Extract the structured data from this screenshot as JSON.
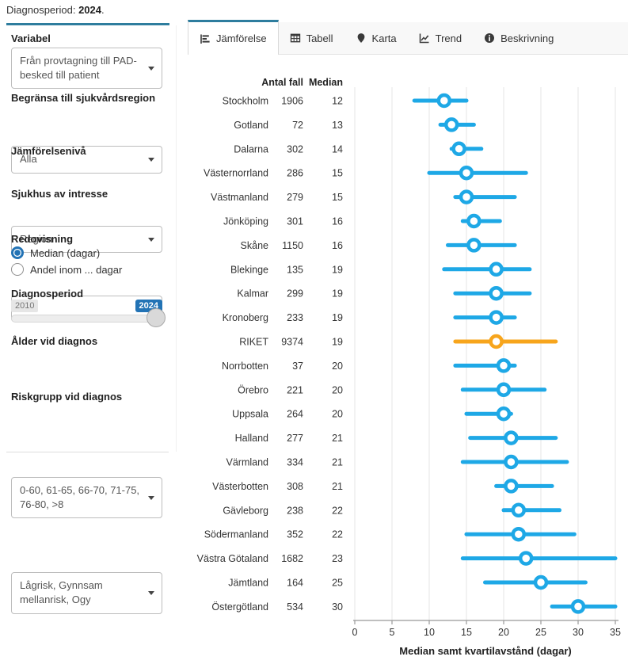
{
  "page": {
    "summary_prefix": "Diagnosperiod: ",
    "summary_value": "2024",
    "summary_suffix": "."
  },
  "sidebar": {
    "variabel_label": "Variabel",
    "variabel_value": "Från provtagning till PAD-besked till patient",
    "region_label": "Begränsa till sjukvårdsregion",
    "region_value": "Alla",
    "niva_label": "Jämförelsenivå",
    "niva_value": "Region",
    "sjukhus_label": "Sjukhus av intresse",
    "sjukhus_value": "",
    "redovisning_label": "Redovisning",
    "redovisning_options": [
      {
        "label": "Median (dagar)",
        "selected": true
      },
      {
        "label": "Andel inom ... dagar",
        "selected": false
      }
    ],
    "period_label": "Diagnosperiod",
    "period_min": "2010",
    "period_max": "2024",
    "alder_label": "Ålder vid diagnos",
    "alder_value": "0-60, 61-65, 66-70, 71-75, 76-80, >8",
    "riskgrupp_label": "Riskgrupp vid diagnos",
    "riskgrupp_value": "Lågrisk, Gynnsam mellanrisk, Ogy"
  },
  "tabs": [
    {
      "label": "Jämförelse",
      "active": true
    },
    {
      "label": "Tabell",
      "active": false
    },
    {
      "label": "Karta",
      "active": false
    },
    {
      "label": "Trend",
      "active": false
    },
    {
      "label": "Beskrivning",
      "active": false
    }
  ],
  "chart_data": {
    "type": "dot-interval",
    "columns": {
      "cases": "Antal fall",
      "median": "Median"
    },
    "xlabel": "Median samt kvartilavstånd (dagar)",
    "xlim": [
      0,
      35
    ],
    "xticks": [
      0,
      5,
      10,
      15,
      20,
      25,
      30,
      35
    ],
    "colors": {
      "marker": "#1ea8e6",
      "highlight": "#f7a51c"
    },
    "rows": [
      {
        "label": "Stockholm",
        "antal_fall": 1906,
        "median": 12,
        "q1": 8,
        "q3": 15,
        "highlight": false
      },
      {
        "label": "Gotland",
        "antal_fall": 72,
        "median": 13,
        "q1": 11.5,
        "q3": 16,
        "highlight": false
      },
      {
        "label": "Dalarna",
        "antal_fall": 302,
        "median": 14,
        "q1": 13,
        "q3": 17,
        "highlight": false
      },
      {
        "label": "Västernorrland",
        "antal_fall": 286,
        "median": 15,
        "q1": 10,
        "q3": 23,
        "highlight": false
      },
      {
        "label": "Västmanland",
        "antal_fall": 279,
        "median": 15,
        "q1": 13.5,
        "q3": 21.5,
        "highlight": false
      },
      {
        "label": "Jönköping",
        "antal_fall": 301,
        "median": 16,
        "q1": 14.5,
        "q3": 19.5,
        "highlight": false
      },
      {
        "label": "Skåne",
        "antal_fall": 1150,
        "median": 16,
        "q1": 12.5,
        "q3": 21.5,
        "highlight": false
      },
      {
        "label": "Blekinge",
        "antal_fall": 135,
        "median": 19,
        "q1": 12,
        "q3": 23.5,
        "highlight": false
      },
      {
        "label": "Kalmar",
        "antal_fall": 299,
        "median": 19,
        "q1": 13.5,
        "q3": 23.5,
        "highlight": false
      },
      {
        "label": "Kronoberg",
        "antal_fall": 233,
        "median": 19,
        "q1": 13.5,
        "q3": 21.5,
        "highlight": false
      },
      {
        "label": "RIKET",
        "antal_fall": 9374,
        "median": 19,
        "q1": 13.5,
        "q3": 27,
        "highlight": true
      },
      {
        "label": "Norrbotten",
        "antal_fall": 37,
        "median": 20,
        "q1": 13.5,
        "q3": 21.5,
        "highlight": false
      },
      {
        "label": "Örebro",
        "antal_fall": 221,
        "median": 20,
        "q1": 14.5,
        "q3": 25.5,
        "highlight": false
      },
      {
        "label": "Uppsala",
        "antal_fall": 264,
        "median": 20,
        "q1": 15,
        "q3": 21,
        "highlight": false
      },
      {
        "label": "Halland",
        "antal_fall": 277,
        "median": 21,
        "q1": 15.5,
        "q3": 27,
        "highlight": false
      },
      {
        "label": "Värmland",
        "antal_fall": 334,
        "median": 21,
        "q1": 14.5,
        "q3": 28.5,
        "highlight": false
      },
      {
        "label": "Västerbotten",
        "antal_fall": 308,
        "median": 21,
        "q1": 19,
        "q3": 26.5,
        "highlight": false
      },
      {
        "label": "Gävleborg",
        "antal_fall": 238,
        "median": 22,
        "q1": 20,
        "q3": 27.5,
        "highlight": false
      },
      {
        "label": "Södermanland",
        "antal_fall": 352,
        "median": 22,
        "q1": 15,
        "q3": 29.5,
        "highlight": false
      },
      {
        "label": "Västra Götaland",
        "antal_fall": 1682,
        "median": 23,
        "q1": 14.5,
        "q3": 35,
        "highlight": false
      },
      {
        "label": "Jämtland",
        "antal_fall": 164,
        "median": 25,
        "q1": 17.5,
        "q3": 31,
        "highlight": false
      },
      {
        "label": "Östergötland",
        "antal_fall": 534,
        "median": 30,
        "q1": 26.5,
        "q3": 35,
        "highlight": false
      }
    ]
  }
}
